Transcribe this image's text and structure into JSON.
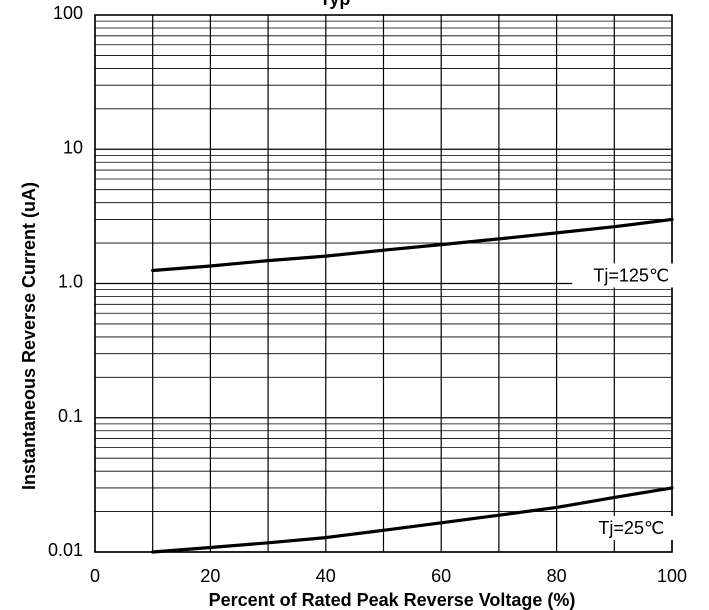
{
  "chart_data": {
    "type": "line",
    "title": "Typ",
    "xlabel": "Percent of Rated Peak Reverse Voltage  (%)",
    "ylabel": "Instantaneous Reverse Current (uA)",
    "xlim": [
      0,
      100
    ],
    "ylim": [
      0.01,
      100
    ],
    "yscale": "log",
    "grid": true,
    "x_ticks": [
      0,
      20,
      40,
      60,
      80,
      100
    ],
    "x_tick_labels": [
      "0",
      "20",
      "40",
      "60",
      "80",
      "100"
    ],
    "y_ticks": [
      0.01,
      0.1,
      1,
      10,
      100
    ],
    "y_tick_labels": [
      "0.01",
      "0.1",
      "1.0",
      "10",
      "100"
    ],
    "series": [
      {
        "name": "Tj=125℃",
        "x": [
          10,
          20,
          30,
          40,
          50,
          60,
          70,
          80,
          90,
          100
        ],
        "y": [
          1.25,
          1.35,
          1.48,
          1.6,
          1.77,
          1.95,
          2.15,
          2.38,
          2.65,
          3.0
        ]
      },
      {
        "name": "Tj=25℃",
        "x": [
          10,
          20,
          30,
          40,
          50,
          60,
          70,
          80,
          90,
          100
        ],
        "y": [
          0.01,
          0.0108,
          0.0117,
          0.0128,
          0.0145,
          0.0165,
          0.0188,
          0.0215,
          0.0255,
          0.03
        ]
      }
    ]
  }
}
